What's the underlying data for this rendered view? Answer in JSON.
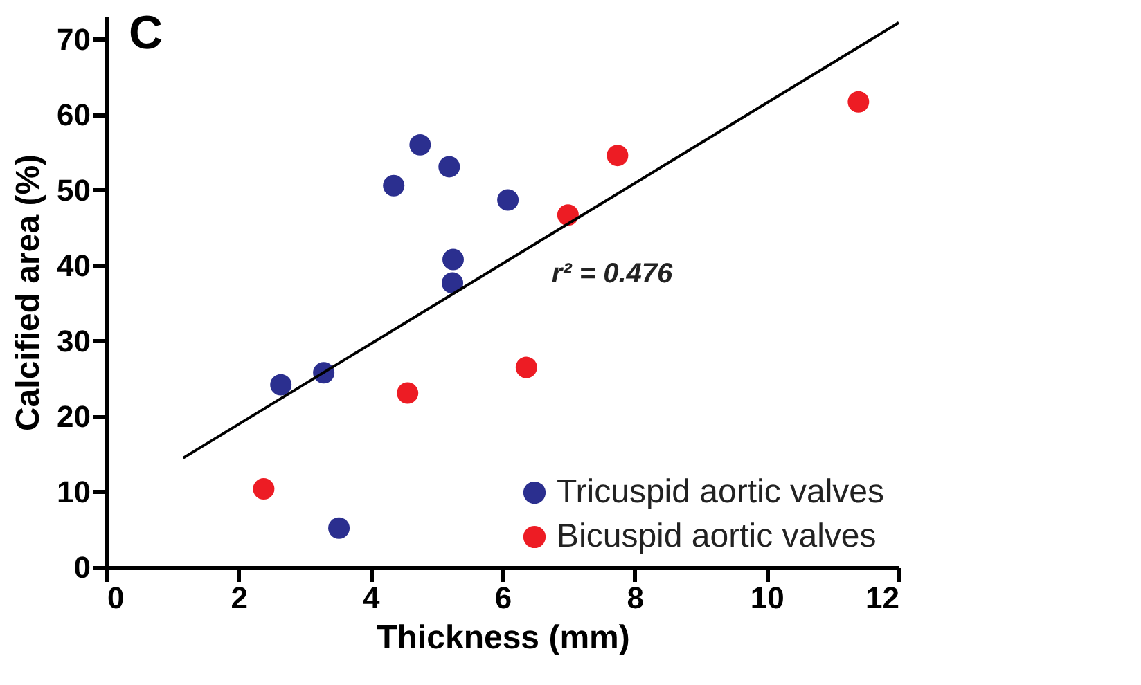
{
  "chart_data": {
    "type": "scatter",
    "title": "C",
    "xlabel": "Thickness (mm)",
    "ylabel": "Calcified area (%)",
    "xlim": [
      0,
      12
    ],
    "xticks": [
      0,
      2,
      4,
      6,
      8,
      10,
      12
    ],
    "ylim": [
      0,
      73
    ],
    "yticks": [
      0,
      10,
      20,
      30,
      40,
      50,
      60,
      70
    ],
    "grid": false,
    "legend": "bottom right",
    "marker": "circle",
    "annotations": [
      "r² = 0.476"
    ],
    "series": [
      {
        "name": "Tricuspid aortic valves",
        "color": "#2b2f8f",
        "x": [
          2.64,
          3.29,
          4.35,
          4.75,
          5.19,
          6.08,
          5.25,
          5.24,
          3.52
        ],
        "values": [
          24.2,
          25.8,
          50.6,
          56.0,
          53.1,
          48.7,
          40.8,
          37.7,
          5.2
        ]
      },
      {
        "name": "Bicuspid aortic valves",
        "color": "#ed1c24",
        "x": [
          2.38,
          4.56,
          6.36,
          6.99,
          7.74,
          11.39
        ],
        "values": [
          10.4,
          23.1,
          26.5,
          46.7,
          54.6,
          61.7
        ]
      },
      {
        "color": "#000000",
        "type": "line",
        "line_style": "solid",
        "marker": "none",
        "x": [
          1.16,
          12.0
        ],
        "values": [
          14.5,
          72.2
        ]
      }
    ]
  }
}
